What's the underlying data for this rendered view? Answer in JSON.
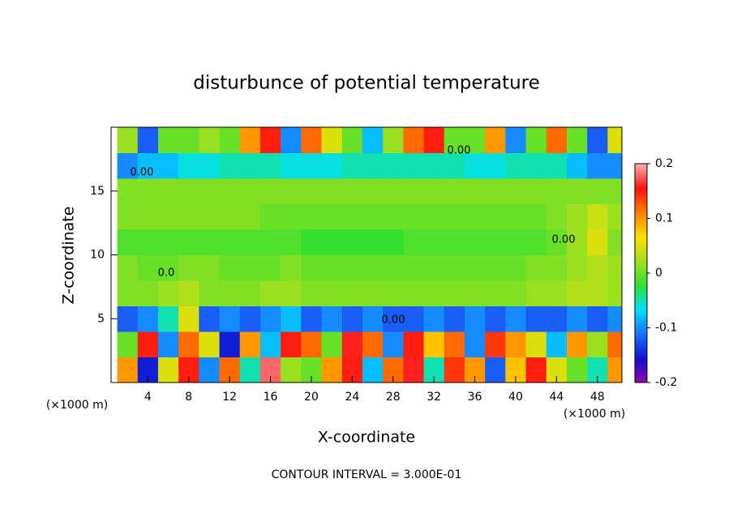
{
  "chart_data": {
    "type": "heatmap",
    "title": "disturbunce of potential temperature",
    "xlabel": "X-coordinate",
    "ylabel": "Z-coordinate",
    "x_unit": "(×1000 m)",
    "x_unit_right": "(×1000 m)",
    "footer": "CONTOUR INTERVAL = 3.000E-01",
    "contour_labels": [
      "0.00",
      "0.00",
      "0.00",
      "0.0",
      "0.00"
    ],
    "x": [
      2,
      4,
      6,
      8,
      10,
      12,
      14,
      16,
      18,
      20,
      22,
      24,
      26,
      28,
      30,
      32,
      34,
      36,
      38,
      40,
      42,
      44,
      46,
      48,
      50
    ],
    "z": [
      1,
      3,
      5,
      7,
      9,
      11,
      13,
      15,
      17,
      19
    ],
    "values": [
      [
        0.1,
        -0.15,
        0.05,
        0.15,
        -0.1,
        0.12,
        -0.05,
        0.18,
        0.02,
        0,
        0.1,
        0.15,
        -0.08,
        0.12,
        0.16,
        -0.05,
        0.14,
        0.1,
        -0.12,
        0.08,
        0.15,
        0.05,
        0,
        -0.05,
        0.1
      ],
      [
        0,
        0.15,
        -0.1,
        0.12,
        0.05,
        -0.15,
        0.1,
        -0.08,
        0.15,
        0.12,
        0,
        0.16,
        0.12,
        -0.1,
        0.15,
        0.08,
        0.12,
        -0.1,
        0.14,
        0.1,
        0.05,
        -0.08,
        0.1,
        0.02,
        0.12
      ],
      [
        -0.12,
        -0.1,
        -0.05,
        0.05,
        -0.12,
        -0.1,
        -0.12,
        -0.1,
        -0.08,
        -0.12,
        -0.1,
        -0.12,
        -0.1,
        -0.12,
        -0.12,
        -0.1,
        -0.12,
        -0.1,
        -0.12,
        -0.1,
        -0.12,
        -0.12,
        -0.1,
        -0.12,
        -0.1
      ],
      [
        0.01,
        0.01,
        0.02,
        0.03,
        0.01,
        0.01,
        0.01,
        0.02,
        0.02,
        0.01,
        0.01,
        0.01,
        0.01,
        0.01,
        0.01,
        0.01,
        0.01,
        0.01,
        0.01,
        0.01,
        0.02,
        0.02,
        0.03,
        0.03,
        0.02
      ],
      [
        0.01,
        0,
        0,
        0.01,
        0.01,
        0,
        0,
        0,
        0.01,
        0,
        0,
        0,
        0,
        0,
        0,
        0,
        0,
        0,
        0,
        0,
        0.01,
        0.01,
        0.02,
        0.03,
        0.02
      ],
      [
        -0.01,
        -0.01,
        -0.01,
        -0.01,
        -0.01,
        -0.01,
        -0.01,
        -0.01,
        -0.01,
        -0.02,
        -0.02,
        -0.02,
        -0.02,
        -0.02,
        -0.01,
        -0.01,
        -0.01,
        -0.01,
        -0.01,
        -0.01,
        -0.01,
        0,
        0.02,
        0.05,
        0.01
      ],
      [
        0.01,
        0.01,
        0.01,
        0.01,
        0.01,
        0.01,
        0.01,
        0,
        0,
        0,
        0,
        0,
        0,
        0,
        0,
        0,
        0,
        0,
        0,
        0,
        0,
        0.01,
        0.02,
        0.04,
        0.02
      ],
      [
        0.01,
        0.01,
        0.01,
        0.01,
        0.01,
        0.01,
        0.01,
        0.01,
        0.01,
        0.01,
        0.01,
        0.01,
        0.01,
        0.01,
        0.01,
        0.01,
        0.01,
        0.01,
        0.01,
        0.01,
        0.01,
        0.01,
        0.01,
        0.01,
        0.01
      ],
      [
        -0.1,
        -0.08,
        -0.08,
        -0.06,
        -0.06,
        -0.05,
        -0.05,
        -0.05,
        -0.06,
        -0.06,
        -0.06,
        -0.05,
        -0.05,
        -0.05,
        -0.05,
        -0.05,
        -0.05,
        -0.06,
        -0.06,
        -0.05,
        -0.05,
        -0.05,
        -0.08,
        -0.1,
        -0.1
      ],
      [
        0.02,
        -0.12,
        0,
        0,
        0.02,
        0,
        0.1,
        0.15,
        -0.1,
        0.12,
        0.05,
        0,
        -0.08,
        0.02,
        0.12,
        0.15,
        0,
        0,
        0.1,
        -0.1,
        0,
        0.12,
        0,
        -0.12,
        0.05
      ]
    ],
    "xlim": [
      0.4,
      50.4
    ],
    "ylim": [
      0,
      20
    ],
    "xticks": [
      4,
      8,
      12,
      16,
      20,
      24,
      28,
      32,
      36,
      40,
      44,
      48
    ],
    "yticks": [
      5,
      10,
      15
    ],
    "clim": [
      -0.2,
      0.2
    ],
    "cticks": [
      -0.2,
      -0.1,
      0,
      0.1,
      0.2
    ],
    "colormap": [
      "#9900aa",
      "#1010d0",
      "#1a70ff",
      "#00e0ff",
      "#30e030",
      "#a0e020",
      "#ffe000",
      "#ff8000",
      "#ff1010",
      "#ffb0b0"
    ]
  }
}
